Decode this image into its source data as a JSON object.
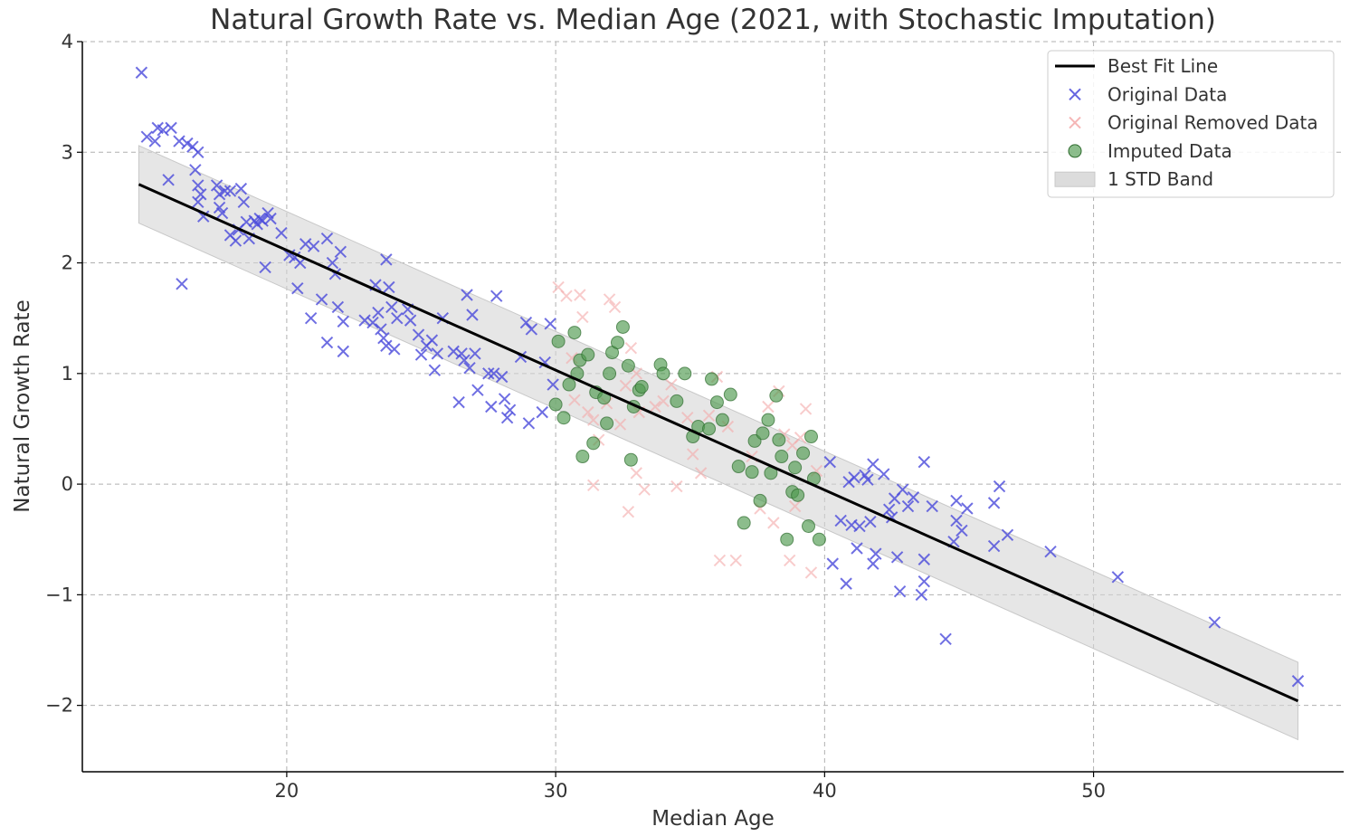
{
  "chart_data": {
    "type": "scatter",
    "title": "Natural Growth Rate vs. Median Age (2021, with Stochastic Imputation)",
    "xlabel": "Median Age",
    "ylabel": "Natural Growth Rate",
    "xlim": [
      12.4,
      59.3
    ],
    "ylim": [
      -2.6,
      4.0
    ],
    "xticks": [
      20,
      30,
      40,
      50
    ],
    "yticks": [
      -2,
      -1,
      0,
      1,
      2,
      3,
      4
    ],
    "xtick_labels": [
      "20",
      "30",
      "40",
      "50"
    ],
    "ytick_labels": [
      "−2",
      "−1",
      "0",
      "1",
      "2",
      "3",
      "4"
    ],
    "grid": true,
    "legend_position": "top-right",
    "legend": [
      {
        "label": "Best Fit Line",
        "kind": "line",
        "color": "#000000"
      },
      {
        "label": "Original Data",
        "kind": "x-marker",
        "color": "#4b4bdc"
      },
      {
        "label": "Original Removed Data",
        "kind": "x-marker",
        "color": "#f4aaaa"
      },
      {
        "label": "Imputed Data",
        "kind": "circle",
        "color": "#4f9a4f"
      },
      {
        "label": "1 STD Band",
        "kind": "band",
        "color": "#dcdcdc"
      }
    ],
    "best_fit": {
      "x": [
        14.5,
        57.6
      ],
      "y": [
        2.71,
        -1.96
      ]
    },
    "std_band": {
      "x": [
        14.5,
        57.6
      ],
      "upper": [
        3.06,
        -1.61
      ],
      "lower": [
        2.36,
        -2.31
      ]
    },
    "series": [
      {
        "name": "Original Data",
        "marker": "x",
        "color": "#4b4bdc",
        "points": [
          [
            14.6,
            3.72
          ],
          [
            14.8,
            3.14
          ],
          [
            15.1,
            3.1
          ],
          [
            15.2,
            3.22
          ],
          [
            15.4,
            3.2
          ],
          [
            15.7,
            3.22
          ],
          [
            15.6,
            2.75
          ],
          [
            16.0,
            3.1
          ],
          [
            16.1,
            1.81
          ],
          [
            16.3,
            3.08
          ],
          [
            16.5,
            3.05
          ],
          [
            16.7,
            3.0
          ],
          [
            16.6,
            2.84
          ],
          [
            16.7,
            2.7
          ],
          [
            16.8,
            2.62
          ],
          [
            16.7,
            2.55
          ],
          [
            16.9,
            2.42
          ],
          [
            17.4,
            2.7
          ],
          [
            17.5,
            2.62
          ],
          [
            17.5,
            2.5
          ],
          [
            17.7,
            2.65
          ],
          [
            17.6,
            2.45
          ],
          [
            17.9,
            2.65
          ],
          [
            17.9,
            2.25
          ],
          [
            18.1,
            2.2
          ],
          [
            18.2,
            2.3
          ],
          [
            18.3,
            2.67
          ],
          [
            18.4,
            2.55
          ],
          [
            18.5,
            2.37
          ],
          [
            18.6,
            2.22
          ],
          [
            18.8,
            2.38
          ],
          [
            18.9,
            2.35
          ],
          [
            19.0,
            2.4
          ],
          [
            19.1,
            2.38
          ],
          [
            19.2,
            1.96
          ],
          [
            19.3,
            2.45
          ],
          [
            19.4,
            2.4
          ],
          [
            19.8,
            2.27
          ],
          [
            20.1,
            2.07
          ],
          [
            20.3,
            2.05
          ],
          [
            20.4,
            1.77
          ],
          [
            20.5,
            2.0
          ],
          [
            20.7,
            2.17
          ],
          [
            20.9,
            1.5
          ],
          [
            21.0,
            2.15
          ],
          [
            21.3,
            1.67
          ],
          [
            21.5,
            1.28
          ],
          [
            21.5,
            2.22
          ],
          [
            21.7,
            2.0
          ],
          [
            21.8,
            1.9
          ],
          [
            21.9,
            1.6
          ],
          [
            22.0,
            2.1
          ],
          [
            22.1,
            1.47
          ],
          [
            22.1,
            1.2
          ],
          [
            22.9,
            1.48
          ],
          [
            23.2,
            1.46
          ],
          [
            23.3,
            1.8
          ],
          [
            23.4,
            1.55
          ],
          [
            23.5,
            1.4
          ],
          [
            23.6,
            1.32
          ],
          [
            23.7,
            1.25
          ],
          [
            23.7,
            2.03
          ],
          [
            23.8,
            1.78
          ],
          [
            23.9,
            1.6
          ],
          [
            24.0,
            1.22
          ],
          [
            24.1,
            1.5
          ],
          [
            24.5,
            1.58
          ],
          [
            24.6,
            1.48
          ],
          [
            24.9,
            1.35
          ],
          [
            25.0,
            1.17
          ],
          [
            25.2,
            1.25
          ],
          [
            25.4,
            1.3
          ],
          [
            25.5,
            1.03
          ],
          [
            25.6,
            1.18
          ],
          [
            25.8,
            1.5
          ],
          [
            26.2,
            1.2
          ],
          [
            26.4,
            0.74
          ],
          [
            26.5,
            1.18
          ],
          [
            26.6,
            1.12
          ],
          [
            26.7,
            1.71
          ],
          [
            26.8,
            1.05
          ],
          [
            26.9,
            1.53
          ],
          [
            27.0,
            1.18
          ],
          [
            27.1,
            0.85
          ],
          [
            27.5,
            1.0
          ],
          [
            27.6,
            0.7
          ],
          [
            27.7,
            1.0
          ],
          [
            27.8,
            1.7
          ],
          [
            28.0,
            0.97
          ],
          [
            28.1,
            0.77
          ],
          [
            28.2,
            0.6
          ],
          [
            28.3,
            0.67
          ],
          [
            28.7,
            1.15
          ],
          [
            28.9,
            1.46
          ],
          [
            29.0,
            0.55
          ],
          [
            29.1,
            1.4
          ],
          [
            29.5,
            0.65
          ],
          [
            29.6,
            1.1
          ],
          [
            29.8,
            1.45
          ],
          [
            29.9,
            0.9
          ],
          [
            40.2,
            0.2
          ],
          [
            40.3,
            -0.72
          ],
          [
            40.6,
            -0.33
          ],
          [
            40.8,
            -0.9
          ],
          [
            40.9,
            0.02
          ],
          [
            41.0,
            -0.37
          ],
          [
            41.1,
            0.06
          ],
          [
            41.2,
            -0.58
          ],
          [
            41.3,
            -0.38
          ],
          [
            41.5,
            0.08
          ],
          [
            41.6,
            0.04
          ],
          [
            41.7,
            -0.34
          ],
          [
            41.8,
            0.18
          ],
          [
            41.8,
            -0.72
          ],
          [
            41.9,
            -0.63
          ],
          [
            42.2,
            0.09
          ],
          [
            42.4,
            -0.23
          ],
          [
            42.5,
            -0.3
          ],
          [
            42.6,
            -0.13
          ],
          [
            42.7,
            -0.66
          ],
          [
            42.8,
            -0.97
          ],
          [
            42.9,
            -0.05
          ],
          [
            43.1,
            -0.2
          ],
          [
            43.3,
            -0.12
          ],
          [
            43.6,
            -1.0
          ],
          [
            43.7,
            -0.68
          ],
          [
            43.7,
            0.2
          ],
          [
            43.7,
            -0.88
          ],
          [
            44.0,
            -0.2
          ],
          [
            44.5,
            -1.4
          ],
          [
            44.8,
            -0.52
          ],
          [
            44.9,
            -0.33
          ],
          [
            44.9,
            -0.15
          ],
          [
            45.1,
            -0.42
          ],
          [
            45.3,
            -0.22
          ],
          [
            46.3,
            -0.17
          ],
          [
            46.3,
            -0.56
          ],
          [
            46.5,
            -0.02
          ],
          [
            46.8,
            -0.46
          ],
          [
            48.4,
            -0.61
          ],
          [
            50.9,
            -0.84
          ],
          [
            54.5,
            -1.25
          ],
          [
            57.6,
            -1.78
          ]
        ]
      },
      {
        "name": "Original Removed Data",
        "marker": "x",
        "color": "#f4aaaa",
        "points": [
          [
            30.1,
            1.78
          ],
          [
            30.4,
            1.7
          ],
          [
            30.6,
            1.14
          ],
          [
            30.7,
            0.76
          ],
          [
            30.9,
            1.71
          ],
          [
            31.0,
            1.51
          ],
          [
            31.2,
            0.65
          ],
          [
            31.4,
            0.58
          ],
          [
            31.4,
            -0.01
          ],
          [
            31.6,
            0.4
          ],
          [
            31.9,
            0.73
          ],
          [
            32.0,
            1.67
          ],
          [
            32.2,
            1.6
          ],
          [
            32.4,
            0.54
          ],
          [
            32.6,
            0.89
          ],
          [
            32.7,
            -0.25
          ],
          [
            32.8,
            1.23
          ],
          [
            33.0,
            1.0
          ],
          [
            33.0,
            0.1
          ],
          [
            33.1,
            0.65
          ],
          [
            33.3,
            -0.05
          ],
          [
            33.7,
            0.7
          ],
          [
            34.0,
            0.75
          ],
          [
            34.3,
            0.9
          ],
          [
            34.5,
            -0.02
          ],
          [
            34.9,
            0.6
          ],
          [
            35.1,
            0.27
          ],
          [
            35.4,
            0.1
          ],
          [
            35.7,
            0.62
          ],
          [
            36.0,
            0.97
          ],
          [
            36.1,
            -0.69
          ],
          [
            36.4,
            0.52
          ],
          [
            36.7,
            -0.69
          ],
          [
            37.3,
            0.25
          ],
          [
            37.6,
            -0.22
          ],
          [
            37.9,
            0.7
          ],
          [
            38.1,
            -0.35
          ],
          [
            38.3,
            0.84
          ],
          [
            38.5,
            0.45
          ],
          [
            38.7,
            -0.69
          ],
          [
            38.8,
            0.35
          ],
          [
            38.9,
            -0.2
          ],
          [
            39.1,
            0.42
          ],
          [
            39.3,
            0.68
          ],
          [
            39.5,
            -0.8
          ],
          [
            39.7,
            0.12
          ]
        ]
      },
      {
        "name": "Imputed Data",
        "marker": "circle",
        "color": "#4f9a4f",
        "points": [
          [
            30.0,
            0.72
          ],
          [
            30.1,
            1.29
          ],
          [
            30.3,
            0.6
          ],
          [
            30.5,
            0.9
          ],
          [
            30.7,
            1.37
          ],
          [
            30.8,
            1.0
          ],
          [
            30.9,
            1.12
          ],
          [
            31.0,
            0.25
          ],
          [
            31.2,
            1.17
          ],
          [
            31.4,
            0.37
          ],
          [
            31.5,
            0.83
          ],
          [
            31.8,
            0.78
          ],
          [
            31.9,
            0.55
          ],
          [
            32.0,
            1.0
          ],
          [
            32.1,
            1.19
          ],
          [
            32.3,
            1.28
          ],
          [
            32.5,
            1.42
          ],
          [
            32.7,
            1.07
          ],
          [
            32.8,
            0.22
          ],
          [
            32.9,
            0.7
          ],
          [
            33.1,
            0.85
          ],
          [
            33.2,
            0.88
          ],
          [
            33.9,
            1.08
          ],
          [
            34.0,
            1.0
          ],
          [
            34.5,
            0.75
          ],
          [
            34.8,
            1.0
          ],
          [
            35.1,
            0.43
          ],
          [
            35.3,
            0.52
          ],
          [
            35.7,
            0.5
          ],
          [
            35.8,
            0.95
          ],
          [
            36.0,
            0.74
          ],
          [
            36.2,
            0.58
          ],
          [
            36.5,
            0.81
          ],
          [
            36.8,
            0.16
          ],
          [
            37.0,
            -0.35
          ],
          [
            37.3,
            0.11
          ],
          [
            37.4,
            0.39
          ],
          [
            37.6,
            -0.15
          ],
          [
            37.7,
            0.46
          ],
          [
            37.9,
            0.58
          ],
          [
            38.0,
            0.1
          ],
          [
            38.2,
            0.8
          ],
          [
            38.3,
            0.4
          ],
          [
            38.4,
            0.25
          ],
          [
            38.6,
            -0.5
          ],
          [
            38.8,
            -0.07
          ],
          [
            38.9,
            0.15
          ],
          [
            39.0,
            -0.1
          ],
          [
            39.2,
            0.28
          ],
          [
            39.4,
            -0.38
          ],
          [
            39.5,
            0.43
          ],
          [
            39.6,
            0.05
          ],
          [
            39.8,
            -0.5
          ]
        ]
      }
    ]
  }
}
